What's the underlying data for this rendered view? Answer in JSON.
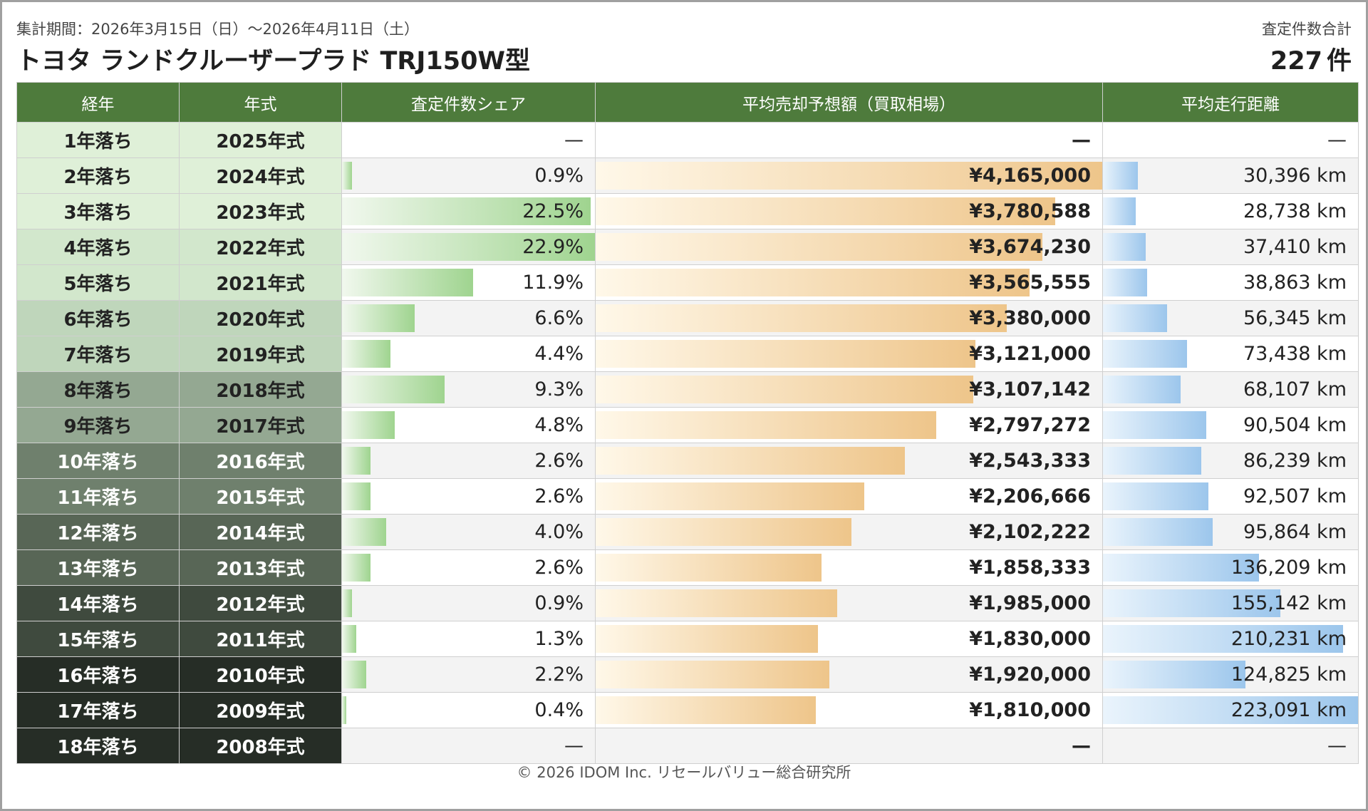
{
  "header": {
    "period": "集計期間：2026年3月15日（日）～2026年4月11日（土）",
    "title": "トヨタ ランドクルーザープラド TRJ150W型",
    "total_label": "査定件数合計",
    "total_value": "227",
    "total_unit": "件"
  },
  "columns": [
    "経年",
    "年式",
    "査定件数シェア",
    "平均売却予想額（買取相場）",
    "平均走行距離"
  ],
  "rows": [
    {
      "age": "1年落ち",
      "year": "2025年式",
      "share": "—",
      "price": "—",
      "distance": "—",
      "share_pct": null,
      "price_val": null,
      "dist_val": null,
      "age_bg": "#dff0d8",
      "age_fg": "#222222"
    },
    {
      "age": "2年落ち",
      "year": "2024年式",
      "share": "0.9%",
      "price": "¥4,165,000",
      "distance": "30,396 km",
      "share_pct": 0.9,
      "price_val": 4165000,
      "dist_val": 30396,
      "age_bg": "#dff0d8",
      "age_fg": "#222222"
    },
    {
      "age": "3年落ち",
      "year": "2023年式",
      "share": "22.5%",
      "price": "¥3,780,588",
      "distance": "28,738 km",
      "share_pct": 22.5,
      "price_val": 3780588,
      "dist_val": 28738,
      "age_bg": "#dff0d8",
      "age_fg": "#222222"
    },
    {
      "age": "4年落ち",
      "year": "2022年式",
      "share": "22.9%",
      "price": "¥3,674,230",
      "distance": "37,410 km",
      "share_pct": 22.9,
      "price_val": 3674230,
      "dist_val": 37410,
      "age_bg": "#d2e7cc",
      "age_fg": "#222222"
    },
    {
      "age": "5年落ち",
      "year": "2021年式",
      "share": "11.9%",
      "price": "¥3,565,555",
      "distance": "38,863 km",
      "share_pct": 11.9,
      "price_val": 3565555,
      "dist_val": 38863,
      "age_bg": "#d2e7cc",
      "age_fg": "#222222"
    },
    {
      "age": "6年落ち",
      "year": "2020年式",
      "share": "6.6%",
      "price": "¥3,380,000",
      "distance": "56,345 km",
      "share_pct": 6.6,
      "price_val": 3380000,
      "dist_val": 56345,
      "age_bg": "#bfd6bb",
      "age_fg": "#222222"
    },
    {
      "age": "7年落ち",
      "year": "2019年式",
      "share": "4.4%",
      "price": "¥3,121,000",
      "distance": "73,438 km",
      "share_pct": 4.4,
      "price_val": 3121000,
      "dist_val": 73438,
      "age_bg": "#bfd6bb",
      "age_fg": "#222222"
    },
    {
      "age": "8年落ち",
      "year": "2018年式",
      "share": "9.3%",
      "price": "¥3,107,142",
      "distance": "68,107 km",
      "share_pct": 9.3,
      "price_val": 3107142,
      "dist_val": 68107,
      "age_bg": "#94a892",
      "age_fg": "#222222"
    },
    {
      "age": "9年落ち",
      "year": "2017年式",
      "share": "4.8%",
      "price": "¥2,797,272",
      "distance": "90,504 km",
      "share_pct": 4.8,
      "price_val": 2797272,
      "dist_val": 90504,
      "age_bg": "#94a892",
      "age_fg": "#222222"
    },
    {
      "age": "10年落ち",
      "year": "2016年式",
      "share": "2.6%",
      "price": "¥2,543,333",
      "distance": "86,239 km",
      "share_pct": 2.6,
      "price_val": 2543333,
      "dist_val": 86239,
      "age_bg": "#6f806d",
      "age_fg": "#ffffff"
    },
    {
      "age": "11年落ち",
      "year": "2015年式",
      "share": "2.6%",
      "price": "¥2,206,666",
      "distance": "92,507 km",
      "share_pct": 2.6,
      "price_val": 2206666,
      "dist_val": 92507,
      "age_bg": "#6f806d",
      "age_fg": "#ffffff"
    },
    {
      "age": "12年落ち",
      "year": "2014年式",
      "share": "4.0%",
      "price": "¥2,102,222",
      "distance": "95,864 km",
      "share_pct": 4.0,
      "price_val": 2102222,
      "dist_val": 95864,
      "age_bg": "#586656",
      "age_fg": "#ffffff"
    },
    {
      "age": "13年落ち",
      "year": "2013年式",
      "share": "2.6%",
      "price": "¥1,858,333",
      "distance": "136,209 km",
      "share_pct": 2.6,
      "price_val": 1858333,
      "dist_val": 136209,
      "age_bg": "#586656",
      "age_fg": "#ffffff"
    },
    {
      "age": "14年落ち",
      "year": "2012年式",
      "share": "0.9%",
      "price": "¥1,985,000",
      "distance": "155,142 km",
      "share_pct": 0.9,
      "price_val": 1985000,
      "dist_val": 155142,
      "age_bg": "#3f4a3e",
      "age_fg": "#ffffff"
    },
    {
      "age": "15年落ち",
      "year": "2011年式",
      "share": "1.3%",
      "price": "¥1,830,000",
      "distance": "210,231 km",
      "share_pct": 1.3,
      "price_val": 1830000,
      "dist_val": 210231,
      "age_bg": "#3f4a3e",
      "age_fg": "#ffffff"
    },
    {
      "age": "16年落ち",
      "year": "2010年式",
      "share": "2.2%",
      "price": "¥1,920,000",
      "distance": "124,825 km",
      "share_pct": 2.2,
      "price_val": 1920000,
      "dist_val": 124825,
      "age_bg": "#262d26",
      "age_fg": "#ffffff"
    },
    {
      "age": "17年落ち",
      "year": "2009年式",
      "share": "0.4%",
      "price": "¥1,810,000",
      "distance": "223,091 km",
      "share_pct": 0.4,
      "price_val": 1810000,
      "dist_val": 223091,
      "age_bg": "#262d26",
      "age_fg": "#ffffff"
    },
    {
      "age": "18年落ち",
      "year": "2008年式",
      "share": "—",
      "price": "—",
      "distance": "—",
      "share_pct": null,
      "price_val": null,
      "dist_val": null,
      "age_bg": "#262d26",
      "age_fg": "#ffffff"
    }
  ],
  "footer": "© 2026 IDOM Inc. リセールバリュー総合研究所",
  "colors": {
    "header_bg": "#4e7b3c",
    "share_bar": "#9fd48f",
    "price_bar": "#eec58a",
    "dist_bar": "#9cc6ec"
  }
}
